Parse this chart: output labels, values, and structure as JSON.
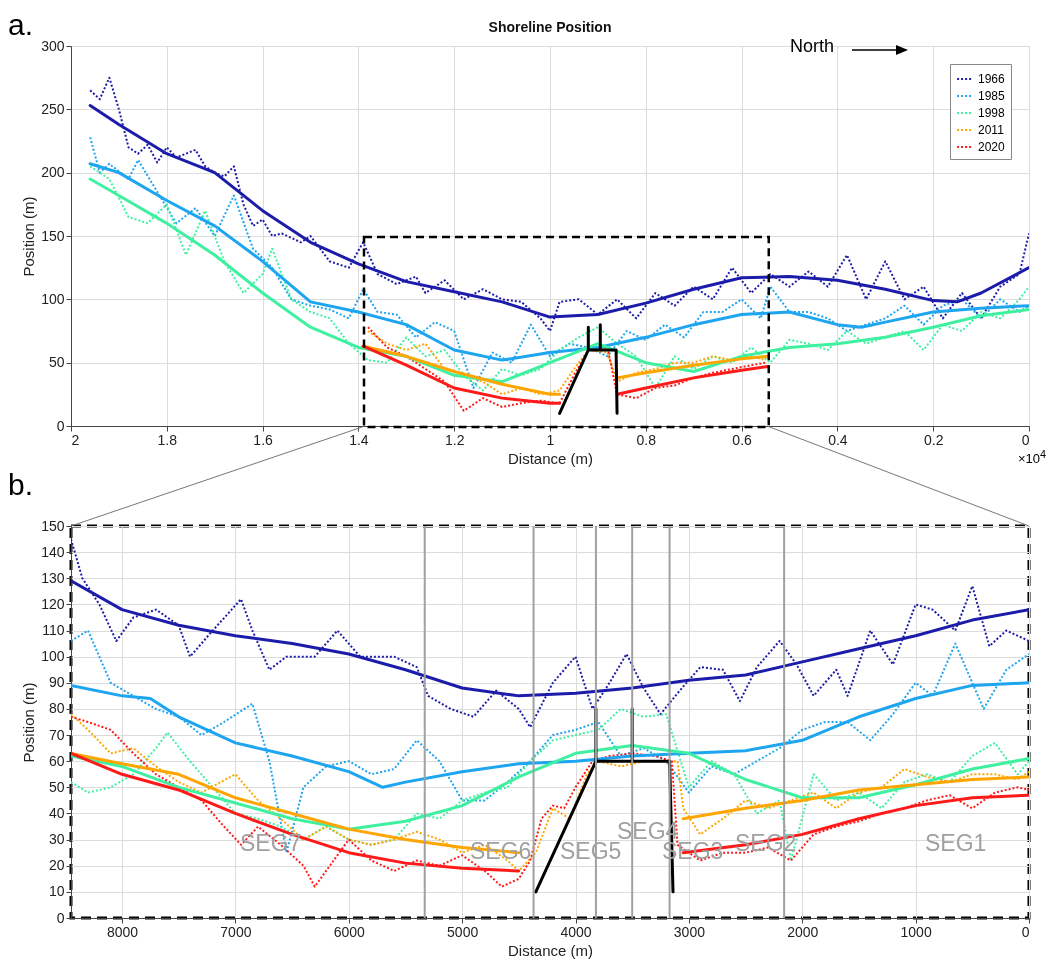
{
  "chart_data": [
    {
      "type": "line",
      "title": "Shoreline Position",
      "xlabel": "Distance (m)",
      "ylabel": "Position (m)",
      "xlim": [
        2,
        0
      ],
      "xticks": [
        2,
        1.8,
        1.6,
        1.4,
        1.2,
        1,
        0.8,
        0.6,
        0.4,
        0.2,
        0
      ],
      "ylim": [
        0,
        300
      ],
      "yticks": [
        0,
        50,
        100,
        150,
        200,
        250,
        300
      ],
      "grid": true,
      "legend": "top right",
      "annotations": [
        "a.",
        "North",
        "×10$^{4}$"
      ],
      "series": [
        {
          "name": "1966",
          "color": "#1c1caa",
          "line_style": "dotted",
          "x": [
            1.96,
            1.94,
            1.92,
            1.9,
            1.88,
            1.86,
            1.84,
            1.82,
            1.8,
            1.78,
            1.74,
            1.72,
            1.7,
            1.68,
            1.66,
            1.64,
            1.62,
            1.6,
            1.58,
            1.56,
            1.52,
            1.5,
            1.46,
            1.42,
            1.39,
            1.36,
            1.32,
            1.28,
            1.26,
            1.22,
            1.18,
            1.14,
            1.1,
            1.06,
            1.02,
            1,
            0.98,
            0.94,
            0.9,
            0.86,
            0.82,
            0.78,
            0.74,
            0.7,
            0.66,
            0.62,
            0.58,
            0.54,
            0.5,
            0.46,
            0.42,
            0.38,
            0.34,
            0.3,
            0.26,
            0.22,
            0.18,
            0.14,
            0.1,
            0.06,
            0.02,
            0
          ],
          "values": [
            265,
            258,
            275,
            250,
            220,
            215,
            222,
            208,
            220,
            212,
            218,
            205,
            200,
            197,
            205,
            175,
            158,
            163,
            150,
            152,
            145,
            150,
            130,
            125,
            145,
            120,
            112,
            118,
            105,
            115,
            100,
            108,
            100,
            98,
            85,
            75,
            98,
            100,
            88,
            100,
            85,
            105,
            95,
            110,
            100,
            125,
            105,
            120,
            110,
            122,
            110,
            135,
            100,
            130,
            100,
            110,
            85,
            105,
            85,
            110,
            120,
            152
          ]
        },
        {
          "name": "1985",
          "color": "#1ea5f0",
          "line_style": "dotted",
          "x": [
            1.96,
            1.94,
            1.92,
            1.88,
            1.86,
            1.82,
            1.78,
            1.74,
            1.7,
            1.66,
            1.62,
            1.58,
            1.54,
            1.5,
            1.46,
            1.42,
            1.39,
            1.36,
            1.32,
            1.28,
            1.24,
            1.2,
            1.16,
            1.12,
            1.08,
            1.04,
            1,
            0.96,
            0.92,
            0.88,
            0.84,
            0.8,
            0.76,
            0.72,
            0.68,
            0.64,
            0.6,
            0.56,
            0.54,
            0.5,
            0.46,
            0.42,
            0.38,
            0.34,
            0.3,
            0.26,
            0.22,
            0.18,
            0.14,
            0.1,
            0.06,
            0.02,
            0
          ],
          "values": [
            228,
            200,
            207,
            195,
            210,
            185,
            160,
            172,
            150,
            182,
            140,
            125,
            100,
            95,
            92,
            85,
            108,
            90,
            88,
            70,
            82,
            75,
            30,
            58,
            50,
            80,
            55,
            65,
            62,
            55,
            75,
            68,
            80,
            70,
            90,
            90,
            100,
            85,
            110,
            90,
            90,
            85,
            75,
            80,
            85,
            95,
            80,
            95,
            100,
            85,
            100,
            90,
            95
          ]
        },
        {
          "name": "1998",
          "color": "#3ff0a0",
          "line_style": "dotted",
          "x": [
            1.96,
            1.92,
            1.88,
            1.84,
            1.8,
            1.76,
            1.72,
            1.68,
            1.64,
            1.6,
            1.58,
            1.54,
            1.5,
            1.46,
            1.42,
            1.38,
            1.34,
            1.3,
            1.26,
            1.22,
            1.18,
            1.14,
            1.1,
            1.06,
            1.02,
            0.98,
            0.94,
            0.9,
            0.86,
            0.82,
            0.78,
            0.74,
            0.7,
            0.66,
            0.62,
            0.58,
            0.54,
            0.5,
            0.46,
            0.42,
            0.38,
            0.34,
            0.3,
            0.26,
            0.22,
            0.18,
            0.14,
            0.1,
            0.06,
            0.02,
            0
          ],
          "values": [
            205,
            195,
            165,
            160,
            175,
            135,
            170,
            130,
            105,
            120,
            140,
            100,
            90,
            85,
            65,
            52,
            50,
            70,
            55,
            60,
            40,
            28,
            45,
            40,
            45,
            60,
            70,
            78,
            65,
            55,
            30,
            55,
            45,
            55,
            50,
            62,
            50,
            68,
            65,
            60,
            75,
            65,
            70,
            75,
            60,
            80,
            75,
            90,
            85,
            100,
            110
          ]
        },
        {
          "name": "2011",
          "color": "#ffa500",
          "line_style": "dotted",
          "x": [
            1.38,
            1.34,
            1.3,
            1.26,
            1.22,
            1.18,
            1.14,
            1.1,
            1.06,
            1.02,
            0.98,
            0.95,
            0.92,
            0.88,
            0.86,
            0.82,
            0.78,
            0.74,
            0.7,
            0.66,
            0.62,
            0.58,
            0.55
          ],
          "values": [
            75,
            65,
            60,
            65,
            45,
            40,
            35,
            25,
            30,
            25,
            28,
            45,
            60,
            58,
            35,
            42,
            45,
            50,
            50,
            55,
            52,
            55,
            52
          ]
        },
        {
          "name": "2020",
          "color": "#ff1a1a",
          "line_style": "dotted",
          "x": [
            1.38,
            1.34,
            1.3,
            1.26,
            1.22,
            1.18,
            1.14,
            1.1,
            1.06,
            1.02,
            0.98,
            0.95,
            0.92,
            0.88,
            0.86,
            0.82,
            0.78,
            0.74,
            0.7,
            0.66,
            0.62,
            0.58,
            0.55
          ],
          "values": [
            78,
            62,
            55,
            45,
            35,
            12,
            22,
            15,
            18,
            20,
            18,
            40,
            60,
            62,
            25,
            22,
            30,
            32,
            38,
            42,
            45,
            48,
            50
          ]
        },
        {
          "color": "#1c1caa",
          "line_style": "solid",
          "x": [
            1.96,
            1.9,
            1.8,
            1.7,
            1.6,
            1.5,
            1.4,
            1.3,
            1.2,
            1.1,
            1,
            0.9,
            0.8,
            0.7,
            0.6,
            0.5,
            0.4,
            0.3,
            0.2,
            0.15,
            0.1,
            0
          ],
          "values": [
            253,
            238,
            215,
            200,
            170,
            145,
            128,
            114,
            106,
            98,
            86,
            88,
            97,
            108,
            117,
            118,
            115,
            108,
            99,
            98,
            105,
            125
          ]
        },
        {
          "color": "#1ea5f0",
          "line_style": "solid",
          "x": [
            1.96,
            1.9,
            1.8,
            1.7,
            1.6,
            1.5,
            1.4,
            1.3,
            1.2,
            1.1,
            1,
            0.9,
            0.8,
            0.7,
            0.6,
            0.5,
            0.4,
            0.35,
            0.3,
            0.2,
            0.1,
            0
          ],
          "values": [
            207,
            200,
            178,
            158,
            130,
            98,
            90,
            80,
            60,
            52,
            58,
            62,
            70,
            80,
            88,
            90,
            80,
            78,
            82,
            90,
            93,
            95
          ]
        },
        {
          "color": "#3ff0a0",
          "line_style": "solid",
          "x": [
            1.96,
            1.9,
            1.8,
            1.7,
            1.6,
            1.5,
            1.4,
            1.3,
            1.2,
            1.1,
            1,
            0.9,
            0.8,
            0.7,
            0.6,
            0.5,
            0.4,
            0.3,
            0.2,
            0.1,
            0
          ],
          "values": [
            195,
            182,
            160,
            135,
            105,
            78,
            62,
            55,
            40,
            35,
            50,
            65,
            50,
            43,
            55,
            62,
            65,
            70,
            78,
            87,
            92
          ]
        },
        {
          "color": "#ffa500",
          "line_style": "solid",
          "x": [
            1.39,
            1.3,
            1.2,
            1.1,
            1,
            0.98,
            0.92,
            0.86,
            0.8,
            0.7,
            0.6,
            0.545
          ],
          "values": [
            63,
            55,
            43,
            33,
            25,
            25,
            null,
            38,
            42,
            48,
            53,
            55
          ]
        },
        {
          "color": "#ff1a1a",
          "line_style": "solid",
          "x": [
            1.39,
            1.3,
            1.2,
            1.1,
            1,
            0.98,
            0.92,
            0.86,
            0.8,
            0.7,
            0.6,
            0.545
          ],
          "values": [
            63,
            48,
            30,
            22,
            18,
            18,
            null,
            25,
            30,
            38,
            44,
            47
          ]
        },
        {
          "color": "#000000",
          "line_style": "solid",
          "x": [
            0.98,
            0.92,
            0.92,
            0.92,
            0.895,
            0.895,
            0.895,
            0.862,
            0.86
          ],
          "values": [
            10,
            60,
            78,
            60,
            60,
            80,
            60,
            60,
            10
          ]
        }
      ]
    },
    {
      "type": "line",
      "xlabel": "Distance (m)",
      "ylabel": "Position (m)",
      "xlim": [
        8450,
        0
      ],
      "xticks": [
        8000,
        7000,
        6000,
        5000,
        4000,
        3000,
        2000,
        1000,
        0
      ],
      "ylim": [
        0,
        150
      ],
      "yticks": [
        0,
        10,
        20,
        30,
        40,
        50,
        60,
        70,
        80,
        90,
        100,
        110,
        120,
        130,
        140,
        150
      ],
      "grid": true,
      "annotations": [
        "b.",
        "SEG7",
        "SEG6",
        "SEG5",
        "SEG4",
        "SEG3",
        "SEG2",
        "SEG1"
      ],
      "ref_lines": [
        {
          "axis": "x",
          "value": 5330,
          "color": "#a0a0a0"
        },
        {
          "axis": "x",
          "value": 4370,
          "color": "#a0a0a0"
        },
        {
          "axis": "x",
          "value": 3820,
          "color": "#a0a0a0"
        },
        {
          "axis": "x",
          "value": 3500,
          "color": "#a0a0a0"
        },
        {
          "axis": "x",
          "value": 3170,
          "color": "#a0a0a0"
        },
        {
          "axis": "x",
          "value": 2160,
          "color": "#a0a0a0"
        }
      ],
      "series": [
        {
          "color": "#1c1caa",
          "line_style": "dotted",
          "x": [
            8450,
            8350,
            8200,
            8050,
            7900,
            7700,
            7500,
            7400,
            7200,
            6950,
            6850,
            6700,
            6550,
            6300,
            6100,
            5900,
            5600,
            5400,
            5300,
            5100,
            4900,
            4700,
            4500,
            4400,
            4200,
            4000,
            3850,
            3700,
            3550,
            3400,
            3250,
            3100,
            2900,
            2700,
            2550,
            2400,
            2200,
            2050,
            1900,
            1700,
            1600,
            1400,
            1200,
            1000,
            850,
            650,
            500,
            350,
            200,
            0
          ],
          "values": [
            145,
            130,
            120,
            106,
            115,
            118,
            112,
            100,
            110,
            122,
            110,
            95,
            100,
            100,
            110,
            100,
            100,
            96,
            85,
            80,
            77,
            87,
            80,
            73,
            90,
            100,
            80,
            90,
            101,
            88,
            78,
            86,
            96,
            95,
            83,
            96,
            106,
            97,
            85,
            95,
            85,
            110,
            97,
            120,
            118,
            110,
            127,
            104,
            110,
            106
          ]
        },
        {
          "color": "#1ea5f0",
          "line_style": "dotted",
          "x": [
            8450,
            8300,
            8100,
            7900,
            7700,
            7500,
            7300,
            7100,
            6850,
            6700,
            6550,
            6400,
            6200,
            6000,
            5800,
            5600,
            5400,
            5200,
            5000,
            4800,
            4600,
            4400,
            4200,
            4000,
            3800,
            3600,
            3400,
            3200,
            3000,
            2800,
            2600,
            2400,
            2200,
            2000,
            1800,
            1600,
            1400,
            1200,
            1000,
            850,
            650,
            400,
            200,
            0
          ],
          "values": [
            106,
            110,
            90,
            85,
            80,
            77,
            70,
            75,
            82,
            60,
            25,
            50,
            58,
            60,
            55,
            57,
            68,
            60,
            45,
            45,
            52,
            60,
            70,
            72,
            75,
            62,
            65,
            60,
            48,
            58,
            55,
            60,
            65,
            72,
            75,
            75,
            68,
            78,
            90,
            85,
            105,
            80,
            95,
            101
          ]
        },
        {
          "color": "#3ff0a0",
          "line_style": "dotted",
          "x": [
            8450,
            8300,
            8100,
            7900,
            7700,
            7600,
            7400,
            7200,
            7000,
            6800,
            6600,
            6400,
            6200,
            6000,
            5800,
            5600,
            5400,
            5200,
            5000,
            4800,
            4600,
            4400,
            4200,
            4000,
            3800,
            3600,
            3400,
            3200,
            3000,
            2800,
            2600,
            2400,
            2200,
            2100,
            1900,
            1700,
            1500,
            1300,
            1100,
            900,
            700,
            500,
            300,
            100,
            0
          ],
          "values": [
            52,
            48,
            50,
            55,
            65,
            71,
            60,
            50,
            40,
            38,
            35,
            30,
            35,
            30,
            28,
            30,
            40,
            38,
            45,
            48,
            50,
            60,
            68,
            70,
            72,
            80,
            77,
            78,
            50,
            60,
            55,
            40,
            45,
            22,
            55,
            45,
            48,
            42,
            52,
            55,
            52,
            62,
            67,
            55,
            60
          ]
        },
        {
          "color": "#ffa500",
          "line_style": "dotted",
          "x": [
            8450,
            8300,
            8100,
            7900,
            7700,
            7500,
            7300,
            7000,
            6800,
            6600,
            6400,
            6200,
            6000,
            5800,
            5600,
            5400,
            5200,
            5000,
            4800,
            4600,
            4500,
            4350,
            4200,
            4050,
            3900,
            3800,
            3600,
            3400,
            3200,
            3100,
            3050,
            2900,
            2700,
            2500,
            2300,
            2100,
            1900,
            1700,
            1500,
            1300,
            1100,
            900,
            700,
            500,
            300,
            100,
            0
          ],
          "values": [
            78,
            72,
            63,
            65,
            58,
            52,
            48,
            55,
            45,
            38,
            30,
            35,
            30,
            28,
            30,
            33,
            30,
            25,
            28,
            22,
            18,
            25,
            42,
            38,
            55,
            60,
            58,
            60,
            60,
            60,
            42,
            32,
            38,
            45,
            42,
            45,
            48,
            42,
            48,
            50,
            57,
            54,
            52,
            55,
            55,
            53,
            56
          ]
        },
        {
          "color": "#ff1a1a",
          "line_style": "dotted",
          "x": [
            8450,
            8300,
            8100,
            7900,
            7700,
            7500,
            7300,
            7100,
            6950,
            6800,
            6600,
            6400,
            6300,
            6200,
            6000,
            5800,
            5600,
            5400,
            5200,
            5000,
            4800,
            4650,
            4500,
            4400,
            4300,
            4200,
            4100,
            4000,
            3850,
            3700,
            3500,
            3300,
            3150,
            3100,
            2900,
            2700,
            2500,
            2300,
            2100,
            1900,
            1700,
            1500,
            1300,
            1100,
            900,
            700,
            500,
            300,
            100,
            0
          ],
          "values": [
            77,
            75,
            72,
            63,
            55,
            50,
            45,
            35,
            28,
            35,
            28,
            20,
            12,
            18,
            30,
            22,
            18,
            22,
            20,
            24,
            18,
            12,
            15,
            22,
            38,
            43,
            42,
            50,
            60,
            62,
            63,
            62,
            60,
            28,
            22,
            25,
            25,
            27,
            22,
            32,
            35,
            37,
            40,
            42,
            45,
            47,
            42,
            48,
            50,
            49
          ]
        },
        {
          "color": "#1c1caa",
          "line_style": "solid",
          "x": [
            8450,
            8000,
            7500,
            7000,
            6500,
            6000,
            5500,
            5000,
            4500,
            4000,
            3500,
            3000,
            2500,
            2000,
            1500,
            1000,
            500,
            0
          ],
          "values": [
            129,
            118,
            112,
            108,
            105,
            101,
            95,
            88,
            85,
            86,
            88,
            91,
            93,
            98,
            103,
            108,
            114,
            118
          ]
        },
        {
          "color": "#1ea5f0",
          "line_style": "solid",
          "x": [
            8450,
            8000,
            7750,
            7500,
            7000,
            6500,
            6000,
            5700,
            5500,
            5000,
            4500,
            4000,
            3500,
            3000,
            2500,
            2000,
            1500,
            1000,
            500,
            0
          ],
          "values": [
            89,
            85,
            84,
            77,
            67,
            62,
            56,
            50,
            52,
            56,
            59,
            60,
            62,
            63,
            64,
            68,
            77,
            84,
            89,
            90
          ]
        },
        {
          "color": "#3ff0a0",
          "line_style": "solid",
          "x": [
            8450,
            8000,
            7500,
            7000,
            6500,
            6000,
            5500,
            5000,
            4500,
            4000,
            3500,
            3000,
            2500,
            2000,
            1500,
            1000,
            500,
            0
          ],
          "values": [
            62,
            58,
            50,
            44,
            38,
            34,
            37,
            43,
            54,
            63,
            66,
            63,
            53,
            46,
            46,
            51,
            57,
            61
          ]
        },
        {
          "color": "#ffa500",
          "line_style": "solid",
          "x": [
            8450,
            8000,
            7500,
            7000,
            6500,
            6000,
            5500,
            5000,
            4500,
            4400,
            3050,
            2500,
            2000,
            1500,
            1000,
            500,
            0
          ],
          "values": [
            63,
            59,
            55,
            46,
            40,
            34,
            30,
            27,
            25,
            null,
            38,
            42,
            45,
            49,
            51,
            53,
            54
          ]
        },
        {
          "color": "#ff1a1a",
          "line_style": "solid",
          "x": [
            8450,
            8000,
            7500,
            7000,
            6500,
            6000,
            5500,
            5000,
            4500,
            4400,
            3050,
            2500,
            2000,
            1500,
            1000,
            500,
            0
          ],
          "values": [
            63,
            55,
            49,
            40,
            32,
            25,
            21,
            19,
            18,
            null,
            25,
            28,
            32,
            38,
            43,
            46,
            47
          ]
        },
        {
          "color": "#000000",
          "line_style": "solid",
          "x": [
            4350,
            3820,
            3820,
            3820,
            3500,
            3500,
            3500,
            3170,
            3140
          ],
          "values": [
            10,
            60,
            80,
            60,
            60,
            80,
            60,
            60,
            10
          ]
        }
      ]
    }
  ]
}
